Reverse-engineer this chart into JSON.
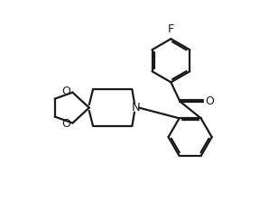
{
  "background": "#ffffff",
  "line_color": "#1a1a1a",
  "line_width": 1.6,
  "fig_width": 3.08,
  "fig_height": 2.42,
  "dpi": 100,
  "xlim": [
    0,
    10
  ],
  "ylim": [
    0,
    8.5
  ]
}
